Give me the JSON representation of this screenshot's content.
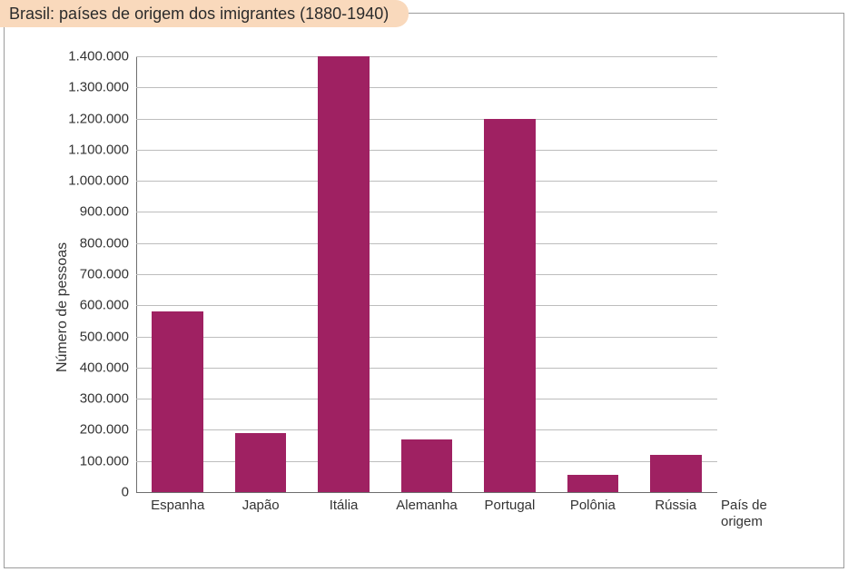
{
  "title": {
    "text": "Brasil: países de origem dos imigrantes (1880-1940)",
    "background_color": "#f9d9bc",
    "text_color": "#2b2b2b",
    "fontsize": 18
  },
  "chart": {
    "type": "bar",
    "background_color": "#ffffff",
    "border_color": "#9c9c9c",
    "grid_color": "#bdbdbd",
    "axis_color": "#6e6e6e",
    "bar_color": "#9f2162",
    "bar_width_ratio": 0.62,
    "y_axis": {
      "label": "Número de pessoas",
      "min": 0,
      "max": 1400000,
      "tick_step": 100000,
      "tick_labels": [
        "0",
        "100.000",
        "200.000",
        "300.000",
        "400.000",
        "500.000",
        "600.000",
        "700.000",
        "800.000",
        "900.000",
        "1.000.000",
        "1.100.000",
        "1.200.000",
        "1.300.000",
        "1.400.000"
      ],
      "label_fontsize": 16,
      "tick_fontsize": 15
    },
    "x_axis": {
      "label": "País de\norigem",
      "categories": [
        "Espanha",
        "Japão",
        "Itália",
        "Alemanha",
        "Portugal",
        "Polônia",
        "Rússia"
      ],
      "tick_fontsize": 15,
      "label_fontsize": 15
    },
    "values": [
      580000,
      190000,
      1400000,
      170000,
      1200000,
      55000,
      120000
    ]
  }
}
